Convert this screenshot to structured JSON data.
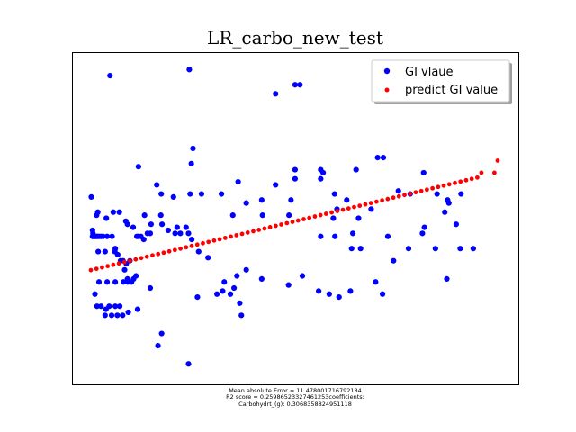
{
  "chart_data": {
    "type": "scatter",
    "title": "LR_carbo_new_test",
    "xlabel": "",
    "ylabel": "",
    "xlim": [
      0,
      100
    ],
    "ylim": [
      0,
      100
    ],
    "grid": false,
    "legend_placement": "top-right",
    "series": [
      {
        "name": "GI vlaue",
        "color": "#0000ff",
        "points": [
          [
            4.7,
            97
          ],
          [
            24.2,
            99
          ],
          [
            45.4,
            91
          ],
          [
            50.2,
            94
          ],
          [
            51.4,
            94
          ],
          [
            25.1,
            73
          ],
          [
            70.5,
            70
          ],
          [
            71.9,
            70
          ],
          [
            24.7,
            68
          ],
          [
            50.2,
            66
          ],
          [
            65.2,
            66
          ],
          [
            57.1,
            65
          ],
          [
            50.2,
            63
          ],
          [
            56.5,
            63
          ],
          [
            45.4,
            61
          ],
          [
            42.0,
            56
          ],
          [
            11.7,
            67
          ],
          [
            16.2,
            61
          ],
          [
            17.3,
            58
          ],
          [
            20.3,
            57
          ],
          [
            24.4,
            58
          ],
          [
            27.2,
            58
          ],
          [
            32.1,
            58
          ],
          [
            36.2,
            62
          ],
          [
            38.2,
            55
          ],
          [
            49.2,
            56
          ],
          [
            34.9,
            51
          ],
          [
            48.7,
            51
          ],
          [
            42.2,
            51
          ],
          [
            17.2,
            51
          ],
          [
            13.2,
            51
          ],
          [
            8.6,
            49
          ],
          [
            9.0,
            48
          ],
          [
            14.6,
            45
          ],
          [
            1.4,
            51
          ],
          [
            1.7,
            52
          ],
          [
            3.8,
            50
          ],
          [
            5.5,
            52
          ],
          [
            7.0,
            52
          ],
          [
            10.4,
            47
          ],
          [
            11.7,
            44
          ],
          [
            12.3,
            44
          ],
          [
            13.9,
            45
          ],
          [
            14.8,
            48
          ],
          [
            17.5,
            48
          ],
          [
            19.0,
            46
          ],
          [
            20.7,
            45
          ],
          [
            21.2,
            47
          ],
          [
            22.0,
            45
          ],
          [
            23.4,
            47
          ],
          [
            24.0,
            45
          ],
          [
            24.8,
            43
          ],
          [
            26.5,
            39
          ],
          [
            28.8,
            37
          ],
          [
            0.1,
            57
          ],
          [
            0.4,
            46
          ],
          [
            0.5,
            45
          ],
          [
            0.4,
            44
          ],
          [
            0.7,
            44
          ],
          [
            1.0,
            44
          ],
          [
            1.3,
            44
          ],
          [
            1.6,
            44
          ],
          [
            2.0,
            44
          ],
          [
            2.5,
            44
          ],
          [
            3.0,
            44
          ],
          [
            4.0,
            44
          ],
          [
            5.2,
            44
          ],
          [
            6.0,
            40
          ],
          [
            6.6,
            38
          ],
          [
            7.9,
            36
          ],
          [
            8.7,
            35
          ],
          [
            9.6,
            36
          ],
          [
            11.3,
            44
          ],
          [
            13.0,
            43
          ],
          [
            1.8,
            39
          ],
          [
            3.5,
            39
          ],
          [
            5.9,
            39
          ],
          [
            7.3,
            36
          ],
          [
            8.3,
            33
          ],
          [
            9.1,
            29
          ],
          [
            2.0,
            29
          ],
          [
            4.0,
            29
          ],
          [
            6.0,
            29
          ],
          [
            8.0,
            29
          ],
          [
            10.0,
            29
          ],
          [
            10.5,
            30
          ],
          [
            11.1,
            31
          ],
          [
            9.0,
            30
          ],
          [
            14.6,
            27
          ],
          [
            35.9,
            31
          ],
          [
            38.2,
            33
          ],
          [
            42.0,
            30
          ],
          [
            48.6,
            28
          ],
          [
            52.0,
            31
          ],
          [
            56.0,
            26
          ],
          [
            58.6,
            25
          ],
          [
            61.0,
            24
          ],
          [
            63.8,
            26
          ],
          [
            71.7,
            25
          ],
          [
            37.0,
            18
          ],
          [
            17.4,
            12
          ],
          [
            32.8,
            29
          ],
          [
            35.2,
            27
          ],
          [
            36.6,
            22
          ],
          [
            32.4,
            26
          ],
          [
            34.3,
            25
          ],
          [
            31.0,
            25
          ],
          [
            26.2,
            24
          ],
          [
            6.0,
            21
          ],
          [
            11.5,
            20
          ],
          [
            3.7,
            20
          ],
          [
            1.0,
            25
          ],
          [
            1.5,
            21
          ],
          [
            2.5,
            21
          ],
          [
            4.5,
            21
          ],
          [
            7.1,
            21
          ],
          [
            3.5,
            18
          ],
          [
            5.1,
            18
          ],
          [
            6.5,
            18
          ],
          [
            7.8,
            18
          ],
          [
            9.2,
            19
          ],
          [
            16.5,
            8
          ],
          [
            24.0,
            2
          ],
          [
            56.5,
            66
          ],
          [
            60.5,
            53
          ],
          [
            68.9,
            53
          ],
          [
            75.6,
            59
          ],
          [
            78.5,
            58
          ],
          [
            89.8,
            48
          ],
          [
            78.1,
            40
          ],
          [
            84.7,
            40
          ],
          [
            90.8,
            40
          ],
          [
            94.0,
            40
          ],
          [
            60.0,
            44
          ],
          [
            64.4,
            45
          ],
          [
            64.1,
            40
          ],
          [
            66.3,
            40
          ],
          [
            82.0,
            47
          ],
          [
            85.1,
            58
          ],
          [
            73.0,
            44
          ],
          [
            88.0,
            55
          ],
          [
            87.5,
            30
          ],
          [
            81.8,
            65
          ],
          [
            87.7,
            56
          ],
          [
            91.0,
            58
          ],
          [
            87.0,
            52
          ],
          [
            81.5,
            45
          ],
          [
            74.4,
            36
          ],
          [
            70.0,
            29
          ],
          [
            62.9,
            56
          ],
          [
            59.9,
            58
          ],
          [
            59.6,
            50
          ],
          [
            56.5,
            44
          ],
          [
            65.8,
            50
          ]
        ]
      },
      {
        "name": "predict GI value",
        "color": "#ff0000",
        "line": {
          "x_start": 0,
          "y_start": 32.9,
          "x_end": 95,
          "y_end": 63.4,
          "count": 70
        },
        "points": [
          [
            96.0,
            65
          ],
          [
            99.2,
            65
          ],
          [
            100.0,
            69
          ]
        ]
      }
    ],
    "annotations": [
      "Mean absolute Error = 11.478001716792184",
      "R2 score = 0.25986523327461253coefficients:",
      "Carbohydrt_(g): 0.3068358824951118"
    ]
  }
}
